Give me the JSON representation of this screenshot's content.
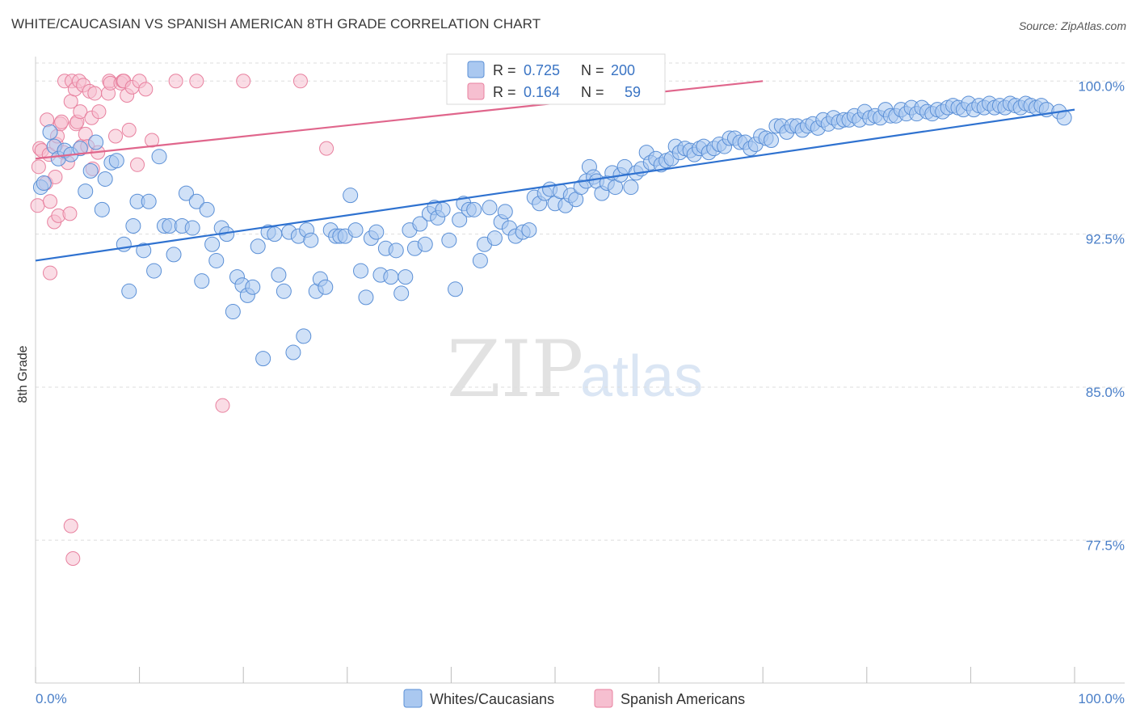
{
  "title": "WHITE/CAUCASIAN VS SPANISH AMERICAN 8TH GRADE CORRELATION CHART",
  "source": "Source: ZipAtlas.com",
  "watermark": {
    "zip": "ZIP",
    "atlas": "atlas"
  },
  "colors": {
    "blue_fill": "#aac8f0",
    "blue_stroke": "#5a8fd6",
    "blue_line": "#2f72d0",
    "pink_fill": "#f6bfd0",
    "pink_stroke": "#e8819f",
    "pink_line": "#e0668c",
    "grid": "#dddddd",
    "axis_text": "#4a7fc8"
  },
  "legend_box": {
    "blue": {
      "r_label": "R =",
      "r_value": "0.725",
      "n_label": "N =",
      "n_value": "200"
    },
    "pink": {
      "r_label": "R =",
      "r_value": "0.164",
      "n_label": "N =",
      "n_value": "59"
    }
  },
  "bottom_legend": [
    "Whites/Caucasians",
    "Spanish Americans"
  ],
  "chart_data": {
    "type": "scatter",
    "title": "WHITE/CAUCASIAN VS SPANISH AMERICAN 8TH GRADE CORRELATION CHART",
    "xlabel": "",
    "ylabel": "8th Grade",
    "xlim": [
      0,
      100
    ],
    "ylim": [
      70.5,
      101.2
    ],
    "x_tick_labels": [
      "0.0%",
      "100.0%"
    ],
    "y_ticks": [
      77.5,
      85.0,
      92.5,
      100.0
    ],
    "y_tick_labels": [
      "77.5%",
      "85.0%",
      "92.5%",
      "100.0%"
    ],
    "grid": true,
    "legend_position": "top-center",
    "series": [
      {
        "name": "Whites/Caucasians",
        "r": 0.725,
        "n": 200,
        "trend": {
          "x": [
            0,
            100
          ],
          "y": [
            91.2,
            98.6
          ]
        },
        "points": [
          [
            0.5,
            94.8
          ],
          [
            0.8,
            95.0
          ],
          [
            1.4,
            97.5
          ],
          [
            1.8,
            96.8
          ],
          [
            2.2,
            96.2
          ],
          [
            2.8,
            96.6
          ],
          [
            3.4,
            96.4
          ],
          [
            4.3,
            96.7
          ],
          [
            4.8,
            94.6
          ],
          [
            5.3,
            95.6
          ],
          [
            5.8,
            97.0
          ],
          [
            6.4,
            93.7
          ],
          [
            6.7,
            95.2
          ],
          [
            7.3,
            96.0
          ],
          [
            7.8,
            96.1
          ],
          [
            8.5,
            92.0
          ],
          [
            9.0,
            89.7
          ],
          [
            9.4,
            92.9
          ],
          [
            9.8,
            94.1
          ],
          [
            10.4,
            91.7
          ],
          [
            10.9,
            94.1
          ],
          [
            11.4,
            90.7
          ],
          [
            11.9,
            96.3
          ],
          [
            12.4,
            92.9
          ],
          [
            12.9,
            92.9
          ],
          [
            13.3,
            91.5
          ],
          [
            14.1,
            92.9
          ],
          [
            14.5,
            94.5
          ],
          [
            15.1,
            92.8
          ],
          [
            15.5,
            94.1
          ],
          [
            16.0,
            90.2
          ],
          [
            16.5,
            93.7
          ],
          [
            17.0,
            92.0
          ],
          [
            17.4,
            91.2
          ],
          [
            17.9,
            92.8
          ],
          [
            18.4,
            92.5
          ],
          [
            19.0,
            88.7
          ],
          [
            19.4,
            90.4
          ],
          [
            19.9,
            90.0
          ],
          [
            20.4,
            89.5
          ],
          [
            20.9,
            89.9
          ],
          [
            21.4,
            91.9
          ],
          [
            21.9,
            86.4
          ],
          [
            22.4,
            92.6
          ],
          [
            23.0,
            92.5
          ],
          [
            23.4,
            90.5
          ],
          [
            23.9,
            89.7
          ],
          [
            24.4,
            92.6
          ],
          [
            24.8,
            86.7
          ],
          [
            25.3,
            92.4
          ],
          [
            25.8,
            87.5
          ],
          [
            26.1,
            92.7
          ],
          [
            26.5,
            92.2
          ],
          [
            27.0,
            89.7
          ],
          [
            27.4,
            90.3
          ],
          [
            27.9,
            89.9
          ],
          [
            28.4,
            92.7
          ],
          [
            28.9,
            92.4
          ],
          [
            29.3,
            92.4
          ],
          [
            29.8,
            92.4
          ],
          [
            30.3,
            94.4
          ],
          [
            30.8,
            92.7
          ],
          [
            31.3,
            90.7
          ],
          [
            31.8,
            89.4
          ],
          [
            32.3,
            92.3
          ],
          [
            32.8,
            92.6
          ],
          [
            33.2,
            90.5
          ],
          [
            33.7,
            91.8
          ],
          [
            34.2,
            90.4
          ],
          [
            34.7,
            91.7
          ],
          [
            35.2,
            89.6
          ],
          [
            35.6,
            90.4
          ],
          [
            36.0,
            92.7
          ],
          [
            36.5,
            91.8
          ],
          [
            37.0,
            93.0
          ],
          [
            37.5,
            92.0
          ],
          [
            37.9,
            93.5
          ],
          [
            38.4,
            93.8
          ],
          [
            38.7,
            93.3
          ],
          [
            39.2,
            93.7
          ],
          [
            39.8,
            92.2
          ],
          [
            40.4,
            89.8
          ],
          [
            40.8,
            93.2
          ],
          [
            41.2,
            94.0
          ],
          [
            41.7,
            93.7
          ],
          [
            42.2,
            93.7
          ],
          [
            42.8,
            91.2
          ],
          [
            43.2,
            92.0
          ],
          [
            43.7,
            93.8
          ],
          [
            44.2,
            92.3
          ],
          [
            44.8,
            93.1
          ],
          [
            45.2,
            93.6
          ],
          [
            45.6,
            92.8
          ],
          [
            46.2,
            92.4
          ],
          [
            46.9,
            92.6
          ],
          [
            47.5,
            92.7
          ],
          [
            48.0,
            94.3
          ],
          [
            48.5,
            94.0
          ],
          [
            49.0,
            94.5
          ],
          [
            49.5,
            94.7
          ],
          [
            50.0,
            94.0
          ],
          [
            50.5,
            94.6
          ],
          [
            51.0,
            93.9
          ],
          [
            51.5,
            94.4
          ],
          [
            52.0,
            94.2
          ],
          [
            52.5,
            94.8
          ],
          [
            53.0,
            95.1
          ],
          [
            53.3,
            95.8
          ],
          [
            53.7,
            95.3
          ],
          [
            54.0,
            95.1
          ],
          [
            54.5,
            94.5
          ],
          [
            55.0,
            95.0
          ],
          [
            55.5,
            95.5
          ],
          [
            55.8,
            94.8
          ],
          [
            56.3,
            95.4
          ],
          [
            56.7,
            95.8
          ],
          [
            57.3,
            94.8
          ],
          [
            57.8,
            95.5
          ],
          [
            58.3,
            95.7
          ],
          [
            58.8,
            96.5
          ],
          [
            59.2,
            96.0
          ],
          [
            59.7,
            96.2
          ],
          [
            60.2,
            95.9
          ],
          [
            60.7,
            96.1
          ],
          [
            61.2,
            96.2
          ],
          [
            61.6,
            96.8
          ],
          [
            62.0,
            96.5
          ],
          [
            62.5,
            96.7
          ],
          [
            63.0,
            96.6
          ],
          [
            63.4,
            96.4
          ],
          [
            63.9,
            96.7
          ],
          [
            64.3,
            96.8
          ],
          [
            64.8,
            96.5
          ],
          [
            65.3,
            96.7
          ],
          [
            65.8,
            96.9
          ],
          [
            66.3,
            96.8
          ],
          [
            66.8,
            97.2
          ],
          [
            67.3,
            97.2
          ],
          [
            67.8,
            97.0
          ],
          [
            68.3,
            97.0
          ],
          [
            68.8,
            96.7
          ],
          [
            69.3,
            96.9
          ],
          [
            69.8,
            97.3
          ],
          [
            70.3,
            97.2
          ],
          [
            70.8,
            97.1
          ],
          [
            71.3,
            97.8
          ],
          [
            71.8,
            97.8
          ],
          [
            72.3,
            97.5
          ],
          [
            72.8,
            97.8
          ],
          [
            73.3,
            97.8
          ],
          [
            73.8,
            97.6
          ],
          [
            74.3,
            97.8
          ],
          [
            74.8,
            97.9
          ],
          [
            75.3,
            97.7
          ],
          [
            75.8,
            98.1
          ],
          [
            76.3,
            97.9
          ],
          [
            76.8,
            98.2
          ],
          [
            77.3,
            98.0
          ],
          [
            77.8,
            98.1
          ],
          [
            78.3,
            98.1
          ],
          [
            78.8,
            98.3
          ],
          [
            79.3,
            98.1
          ],
          [
            79.8,
            98.5
          ],
          [
            80.3,
            98.2
          ],
          [
            80.8,
            98.3
          ],
          [
            81.3,
            98.2
          ],
          [
            81.8,
            98.6
          ],
          [
            82.3,
            98.3
          ],
          [
            82.8,
            98.3
          ],
          [
            83.3,
            98.6
          ],
          [
            83.8,
            98.4
          ],
          [
            84.3,
            98.7
          ],
          [
            84.8,
            98.4
          ],
          [
            85.3,
            98.7
          ],
          [
            85.8,
            98.5
          ],
          [
            86.3,
            98.4
          ],
          [
            86.8,
            98.6
          ],
          [
            87.3,
            98.5
          ],
          [
            87.8,
            98.7
          ],
          [
            88.3,
            98.8
          ],
          [
            88.8,
            98.7
          ],
          [
            89.3,
            98.6
          ],
          [
            89.8,
            98.9
          ],
          [
            90.3,
            98.6
          ],
          [
            90.8,
            98.8
          ],
          [
            91.3,
            98.7
          ],
          [
            91.8,
            98.9
          ],
          [
            92.3,
            98.7
          ],
          [
            92.8,
            98.8
          ],
          [
            93.3,
            98.7
          ],
          [
            93.8,
            98.9
          ],
          [
            94.3,
            98.8
          ],
          [
            94.8,
            98.7
          ],
          [
            95.3,
            98.9
          ],
          [
            95.8,
            98.8
          ],
          [
            96.3,
            98.7
          ],
          [
            96.8,
            98.8
          ],
          [
            97.3,
            98.6
          ],
          [
            98.5,
            98.5
          ],
          [
            99.0,
            98.2
          ]
        ]
      },
      {
        "name": "Spanish Americans",
        "r": 0.164,
        "n": 59,
        "trend": {
          "x": [
            0,
            70
          ],
          "y": [
            96.2,
            100.0
          ]
        },
        "points": [
          [
            0.2,
            93.9
          ],
          [
            0.3,
            95.8
          ],
          [
            0.4,
            96.7
          ],
          [
            0.6,
            96.6
          ],
          [
            1.0,
            95.0
          ],
          [
            1.1,
            98.1
          ],
          [
            1.3,
            96.4
          ],
          [
            1.4,
            94.1
          ],
          [
            1.4,
            90.6
          ],
          [
            1.8,
            93.1
          ],
          [
            1.9,
            95.3
          ],
          [
            2.0,
            96.9
          ],
          [
            2.1,
            97.3
          ],
          [
            2.2,
            93.4
          ],
          [
            2.4,
            97.9
          ],
          [
            2.5,
            98.0
          ],
          [
            2.7,
            96.5
          ],
          [
            2.8,
            100.0
          ],
          [
            3.1,
            96.0
          ],
          [
            3.3,
            93.5
          ],
          [
            3.4,
            78.2
          ],
          [
            3.4,
            99.0
          ],
          [
            3.5,
            100.0
          ],
          [
            3.6,
            76.6
          ],
          [
            3.8,
            99.6
          ],
          [
            3.9,
            97.9
          ],
          [
            4.0,
            98.0
          ],
          [
            4.2,
            100.0
          ],
          [
            4.3,
            98.5
          ],
          [
            4.4,
            96.8
          ],
          [
            4.6,
            99.8
          ],
          [
            4.8,
            97.4
          ],
          [
            5.0,
            96.8
          ],
          [
            5.2,
            99.5
          ],
          [
            5.4,
            98.2
          ],
          [
            5.5,
            95.7
          ],
          [
            5.7,
            99.4
          ],
          [
            6.0,
            96.5
          ],
          [
            6.1,
            98.5
          ],
          [
            7.0,
            99.4
          ],
          [
            7.1,
            100.0
          ],
          [
            7.2,
            99.9
          ],
          [
            7.7,
            97.3
          ],
          [
            8.2,
            99.9
          ],
          [
            8.4,
            100.0
          ],
          [
            8.5,
            100.0
          ],
          [
            8.8,
            99.3
          ],
          [
            9.0,
            97.6
          ],
          [
            9.3,
            99.7
          ],
          [
            9.8,
            95.9
          ],
          [
            10.0,
            100.0
          ],
          [
            10.6,
            99.6
          ],
          [
            11.2,
            97.1
          ],
          [
            13.5,
            100.0
          ],
          [
            15.5,
            100.0
          ],
          [
            18.0,
            84.1
          ],
          [
            20.0,
            100.0
          ],
          [
            25.5,
            100.0
          ],
          [
            28.0,
            96.7
          ]
        ]
      }
    ]
  }
}
